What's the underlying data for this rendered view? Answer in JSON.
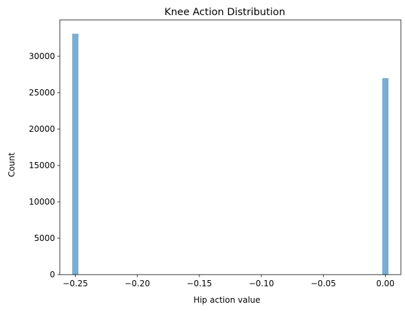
{
  "chart_data": {
    "type": "bar",
    "title": "Knee Action Distribution",
    "xlabel": "Hip action value",
    "ylabel": "Count",
    "xlim": [
      -0.2625,
      0.0125
    ],
    "ylim": [
      0,
      35000
    ],
    "x_ticks": [
      -0.25,
      -0.2,
      -0.15,
      -0.1,
      -0.05,
      0.0
    ],
    "x_tick_labels": [
      "−0.25",
      "−0.20",
      "−0.15",
      "−0.10",
      "−0.05",
      "0.00"
    ],
    "y_ticks": [
      0,
      5000,
      10000,
      15000,
      20000,
      25000,
      30000
    ],
    "y_tick_labels": [
      "0",
      "5000",
      "10000",
      "15000",
      "20000",
      "25000",
      "30000"
    ],
    "bin_width": 0.005,
    "bars": [
      {
        "x": -0.25,
        "value": 33100
      },
      {
        "x": 0.0,
        "value": 27000
      }
    ],
    "grid": false,
    "bar_color": "#4c93c3",
    "bar_opacity": 0.75
  }
}
